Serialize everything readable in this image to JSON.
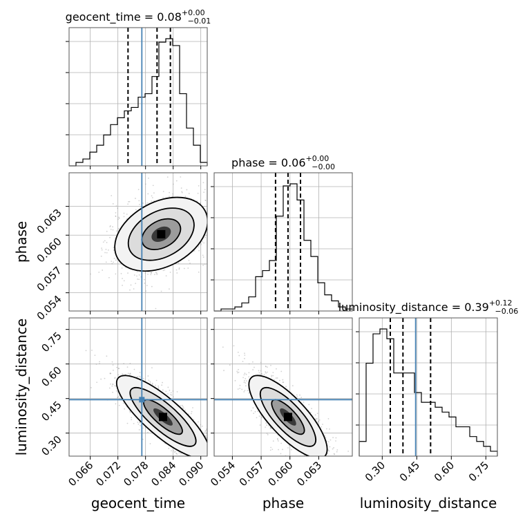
{
  "colors": {
    "truth": "#4682b4",
    "hist": "#000000",
    "grid": "#b0b0b0",
    "points": "#9a9a9a"
  },
  "chart_data": {
    "type": "corner",
    "parameters": [
      "geocent_time",
      "phase",
      "luminosity_distance"
    ],
    "titles": [
      {
        "name": "geocent_time",
        "median": "0.08",
        "plus": "+0.00",
        "minus": "−0.01"
      },
      {
        "name": "phase",
        "median": "0.06",
        "plus": "+0.00",
        "minus": "−0.00"
      },
      {
        "name": "luminosity_distance",
        "median": "0.39",
        "plus": "+0.12",
        "minus": "−0.06"
      }
    ],
    "xlabels": [
      "geocent_time",
      "phase",
      "luminosity_distance"
    ],
    "ylabels": [
      "",
      "phase",
      "luminosity_distance"
    ],
    "ranges": {
      "geocent_time": [
        0.0614,
        0.0914
      ],
      "phase": [
        0.0521,
        0.0665
      ],
      "luminosity_distance": [
        0.2,
        0.8
      ]
    },
    "ticks": {
      "geocent_time": [
        0.066,
        0.072,
        0.078,
        0.084,
        0.09
      ],
      "phase": [
        0.054,
        0.057,
        0.06,
        0.063
      ],
      "luminosity_distance": [
        0.3,
        0.45,
        0.6,
        0.75
      ]
    },
    "tick_labels": {
      "geocent_time": [
        "0.066",
        "0.072",
        "0.078",
        "0.084",
        "0.090"
      ],
      "phase": [
        "0.054",
        "0.057",
        "0.060",
        "0.063"
      ],
      "luminosity_distance": [
        "0.30",
        "0.45",
        "0.60",
        "0.75"
      ]
    },
    "truths": {
      "geocent_time": 0.0772,
      "phase": null,
      "luminosity_distance": 0.445
    },
    "quantiles": {
      "geocent_time": [
        0.0742,
        0.0805,
        0.0834
      ],
      "phase": [
        0.0585,
        0.0598,
        0.0611
      ],
      "luminosity_distance": [
        0.335,
        0.39,
        0.51
      ]
    },
    "histograms": {
      "geocent_time": [
        0,
        1,
        2,
        4,
        6,
        9,
        12,
        14,
        16,
        17,
        20,
        21,
        26,
        36,
        37,
        35,
        21,
        11,
        6,
        1
      ],
      "phase": [
        0,
        1,
        1,
        2,
        4,
        7,
        17,
        20,
        25,
        47,
        62,
        63,
        55,
        35,
        27,
        14,
        8,
        5,
        2,
        1
      ],
      "luminosity_distance": [
        3,
        19,
        25,
        26,
        24,
        17,
        17,
        17,
        13,
        11,
        11,
        10,
        9,
        8,
        6,
        6,
        4,
        3,
        2,
        1
      ]
    },
    "grid": true
  }
}
